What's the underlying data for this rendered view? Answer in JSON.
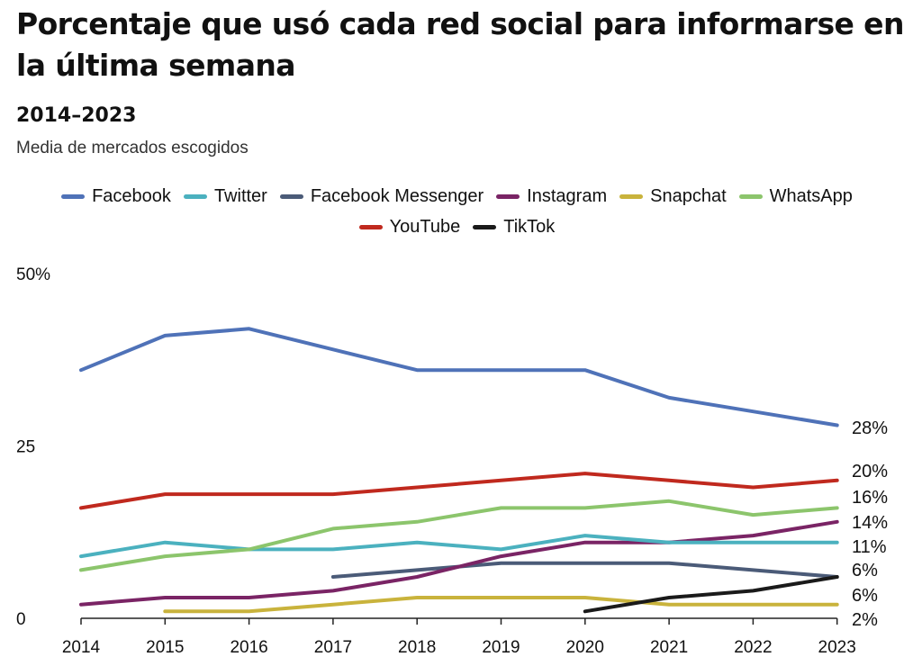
{
  "header": {
    "title": "Porcentaje que usó cada red social para informarse en la última semana",
    "subtitle": "2014–2023",
    "note": "Media de mercados escogidos"
  },
  "chart_data": {
    "type": "line",
    "title": "Porcentaje que usó cada red social para informarse en la última semana",
    "subtitle": "2014–2023",
    "xlabel": "",
    "ylabel": "",
    "x": [
      "2014",
      "2015",
      "2016",
      "2017",
      "2018",
      "2019",
      "2020",
      "2021",
      "2022",
      "2023"
    ],
    "ylim": [
      0,
      50
    ],
    "yticks": [
      "0",
      "25",
      "50%"
    ],
    "grid": false,
    "legend_position": "top",
    "series": [
      {
        "name": "Facebook",
        "color": "#4f72b8",
        "values": [
          36,
          41,
          42,
          39,
          36,
          36,
          36,
          32,
          30,
          28
        ],
        "end_label": "28%"
      },
      {
        "name": "Twitter",
        "color": "#4bb1bf",
        "values": [
          9,
          11,
          10,
          10,
          11,
          10,
          12,
          11,
          11,
          11
        ],
        "end_label": "11%"
      },
      {
        "name": "Facebook Messenger",
        "color": "#4b5b78",
        "values": [
          null,
          null,
          null,
          6,
          7,
          8,
          8,
          8,
          7,
          6
        ],
        "end_label": "6%"
      },
      {
        "name": "Instagram",
        "color": "#7a2465",
        "values": [
          2,
          3,
          3,
          4,
          6,
          9,
          11,
          11,
          12,
          14
        ],
        "end_label": "14%"
      },
      {
        "name": "Snapchat",
        "color": "#c9b33c",
        "values": [
          null,
          1,
          1,
          2,
          3,
          3,
          3,
          2,
          2,
          2
        ],
        "end_label": "2%"
      },
      {
        "name": "WhatsApp",
        "color": "#8cc56c",
        "values": [
          7,
          9,
          10,
          13,
          14,
          16,
          16,
          17,
          15,
          16
        ],
        "end_label": "16%"
      },
      {
        "name": "YouTube",
        "color": "#c0291e",
        "values": [
          16,
          18,
          18,
          18,
          19,
          20,
          21,
          20,
          19,
          20
        ],
        "end_label": "20%"
      },
      {
        "name": "TikTok",
        "color": "#1a1a1a",
        "values": [
          null,
          null,
          null,
          null,
          null,
          null,
          1,
          3,
          4,
          6
        ],
        "end_label": "6%"
      }
    ],
    "end_labels_order": [
      "28%",
      "20%",
      "16%",
      "14%",
      "11%",
      "6%",
      "6%",
      "2%"
    ]
  }
}
